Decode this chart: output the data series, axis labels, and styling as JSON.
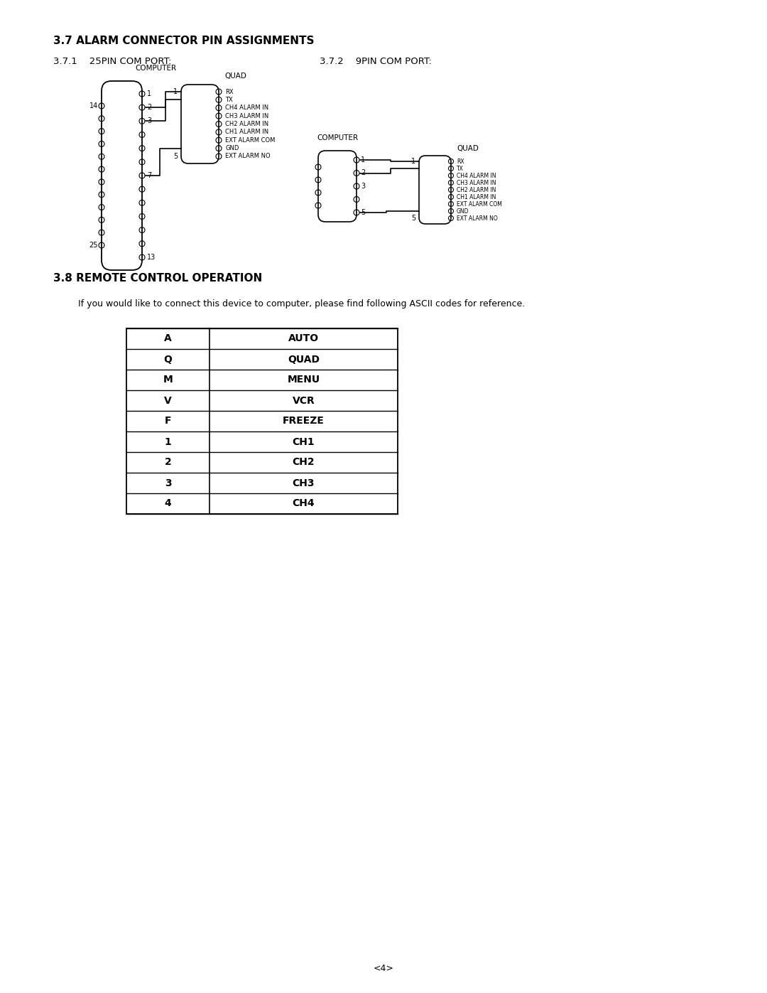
{
  "section_37_title": "3.7 ALARM CONNECTOR PIN ASSIGNMENTS",
  "section_371_label": "3.7.1    25PIN COM PORT:",
  "section_372_label": "3.7.2    9PIN COM PORT:",
  "section_38_title": "3.8 REMOTE CONTROL OPERATION",
  "section_38_text": "If you would like to connect this device to computer, please find following ASCII codes for reference.",
  "table_rows": [
    [
      "A",
      "AUTO"
    ],
    [
      "Q",
      "QUAD"
    ],
    [
      "M",
      "MENU"
    ],
    [
      "V",
      "VCR"
    ],
    [
      "F",
      "FREEZE"
    ],
    [
      "1",
      "CH1"
    ],
    [
      "2",
      "CH2"
    ],
    [
      "3",
      "CH3"
    ],
    [
      "4",
      "CH4"
    ]
  ],
  "quad_labels": [
    "RX",
    "TX",
    "CH4 ALARM IN",
    "CH3 ALARM IN",
    "CH2 ALARM IN",
    "CH1 ALARM IN",
    "EXT ALARM COM",
    "GND",
    "EXT ALARM NO"
  ],
  "page_number": "<4>",
  "bg_color": "#ffffff",
  "text_color": "#000000"
}
